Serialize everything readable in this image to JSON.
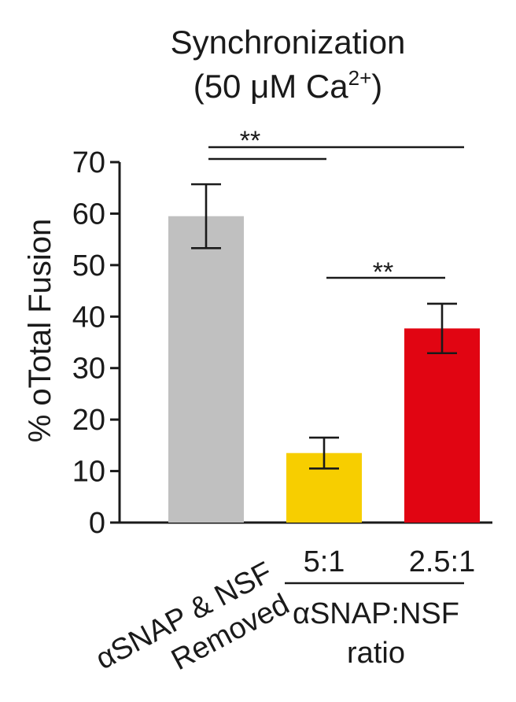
{
  "chart_data": {
    "type": "bar",
    "title_line1": "Synchronization",
    "title_line2_prefix": "(50 ",
    "title_line2_mu": "μ",
    "title_line2_unit": "M Ca",
    "title_line2_sup": "2+",
    "title_line2_suffix": ")",
    "ylabel": "% oTotal Fusion",
    "ylim": [
      0,
      70
    ],
    "yticks": [
      0,
      10,
      20,
      30,
      40,
      50,
      60,
      70
    ],
    "bars": [
      {
        "label_lines": [
          "αSNAP & NSF",
          "Removed"
        ],
        "value": 59.5,
        "error": 6.2,
        "color": "#c0c0c0"
      },
      {
        "label_lines": [
          "5:1"
        ],
        "value": 13.5,
        "error": 3.0,
        "color": "#f7ce00"
      },
      {
        "label_lines": [
          "2.5:1"
        ],
        "value": 37.7,
        "error": 4.8,
        "color": "#e10512"
      }
    ],
    "group_label": [
      "αSNAP:NSF",
      "ratio"
    ],
    "significance": [
      {
        "from": 0,
        "to": 1,
        "label": "**"
      },
      {
        "from": 0,
        "to": 2,
        "label": "**"
      },
      {
        "from": 1,
        "to": 2,
        "label": "**"
      }
    ]
  }
}
